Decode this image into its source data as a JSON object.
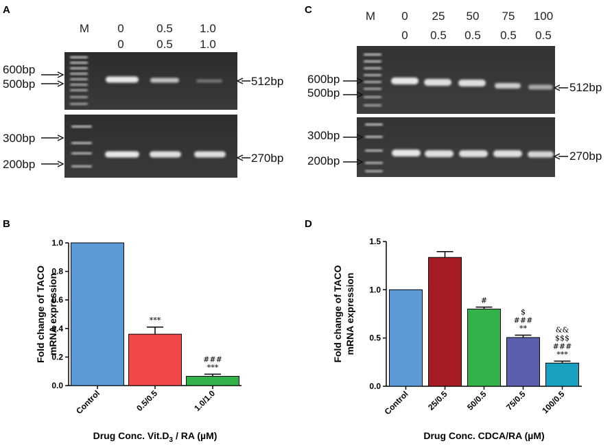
{
  "panels": {
    "A": {
      "letter": "A",
      "marker": "M",
      "lanes_row1": [
        "0",
        "0.5",
        "1.0"
      ],
      "lanes_row2": [
        "0",
        "0.5",
        "1.0"
      ],
      "top_markers": [
        "600bp",
        "500bp"
      ],
      "bottom_markers": [
        "300bp",
        "200bp"
      ],
      "top_band": "512bp",
      "bottom_band": "270bp"
    },
    "C": {
      "letter": "C",
      "marker": "M",
      "lanes_row1": [
        "0",
        "25",
        "50",
        "75",
        "100"
      ],
      "lanes_row2": [
        "0",
        "0.5",
        "0.5",
        "0.5",
        "0.5"
      ],
      "top_markers": [
        "600bp",
        "500bp"
      ],
      "bottom_markers": [
        "300bp",
        "200bp"
      ],
      "top_band": "512bp",
      "bottom_band": "270bp"
    },
    "B": {
      "letter": "B"
    },
    "D": {
      "letter": "D"
    }
  },
  "chart_data": [
    {
      "type": "bar",
      "panel": "B",
      "categories": [
        "Control",
        "0.5/0.5",
        "1.0/1.0"
      ],
      "values": [
        1.0,
        0.36,
        0.065
      ],
      "errors": [
        0,
        0.05,
        0.015
      ],
      "colors": [
        "#5b9bd5",
        "#f04848",
        "#33b14a"
      ],
      "significance": [
        [],
        [
          "***"
        ],
        [
          "###",
          "***"
        ]
      ],
      "ylabel_line1": "Fold change of TACO",
      "ylabel_line2": "mRNA expression",
      "xlabel_main": "Drug Conc. Vit.D",
      "xlabel_sub": "3",
      "xlabel_tail": " / RA (µM)",
      "ylim": [
        0,
        1.0
      ],
      "yticks": [
        "0.0",
        "0.2",
        "0.4",
        "0.6",
        "0.8",
        "1.0"
      ]
    },
    {
      "type": "bar",
      "panel": "D",
      "categories": [
        "Control",
        "25/0.5",
        "50/0.5",
        "75/0.5",
        "100/0.5"
      ],
      "values": [
        1.0,
        1.335,
        0.8,
        0.505,
        0.24
      ],
      "errors": [
        0,
        0.06,
        0.02,
        0.025,
        0.02
      ],
      "colors": [
        "#5b9bd5",
        "#a51d22",
        "#33b14a",
        "#5a5fae",
        "#1aa0c1"
      ],
      "significance": [
        [],
        [],
        [
          "#"
        ],
        [
          "$",
          "###",
          "**"
        ],
        [
          "&&",
          "$$$",
          "###",
          "***"
        ]
      ],
      "ylabel_line1": "Fold change of TACO",
      "ylabel_line2": "mRNA expression",
      "xlabel_main": "Drug Conc. CDCA/RA (µM)",
      "ylim": [
        0,
        1.5
      ],
      "yticks": [
        "0.0",
        "0.5",
        "1.0",
        "1.5"
      ]
    }
  ]
}
